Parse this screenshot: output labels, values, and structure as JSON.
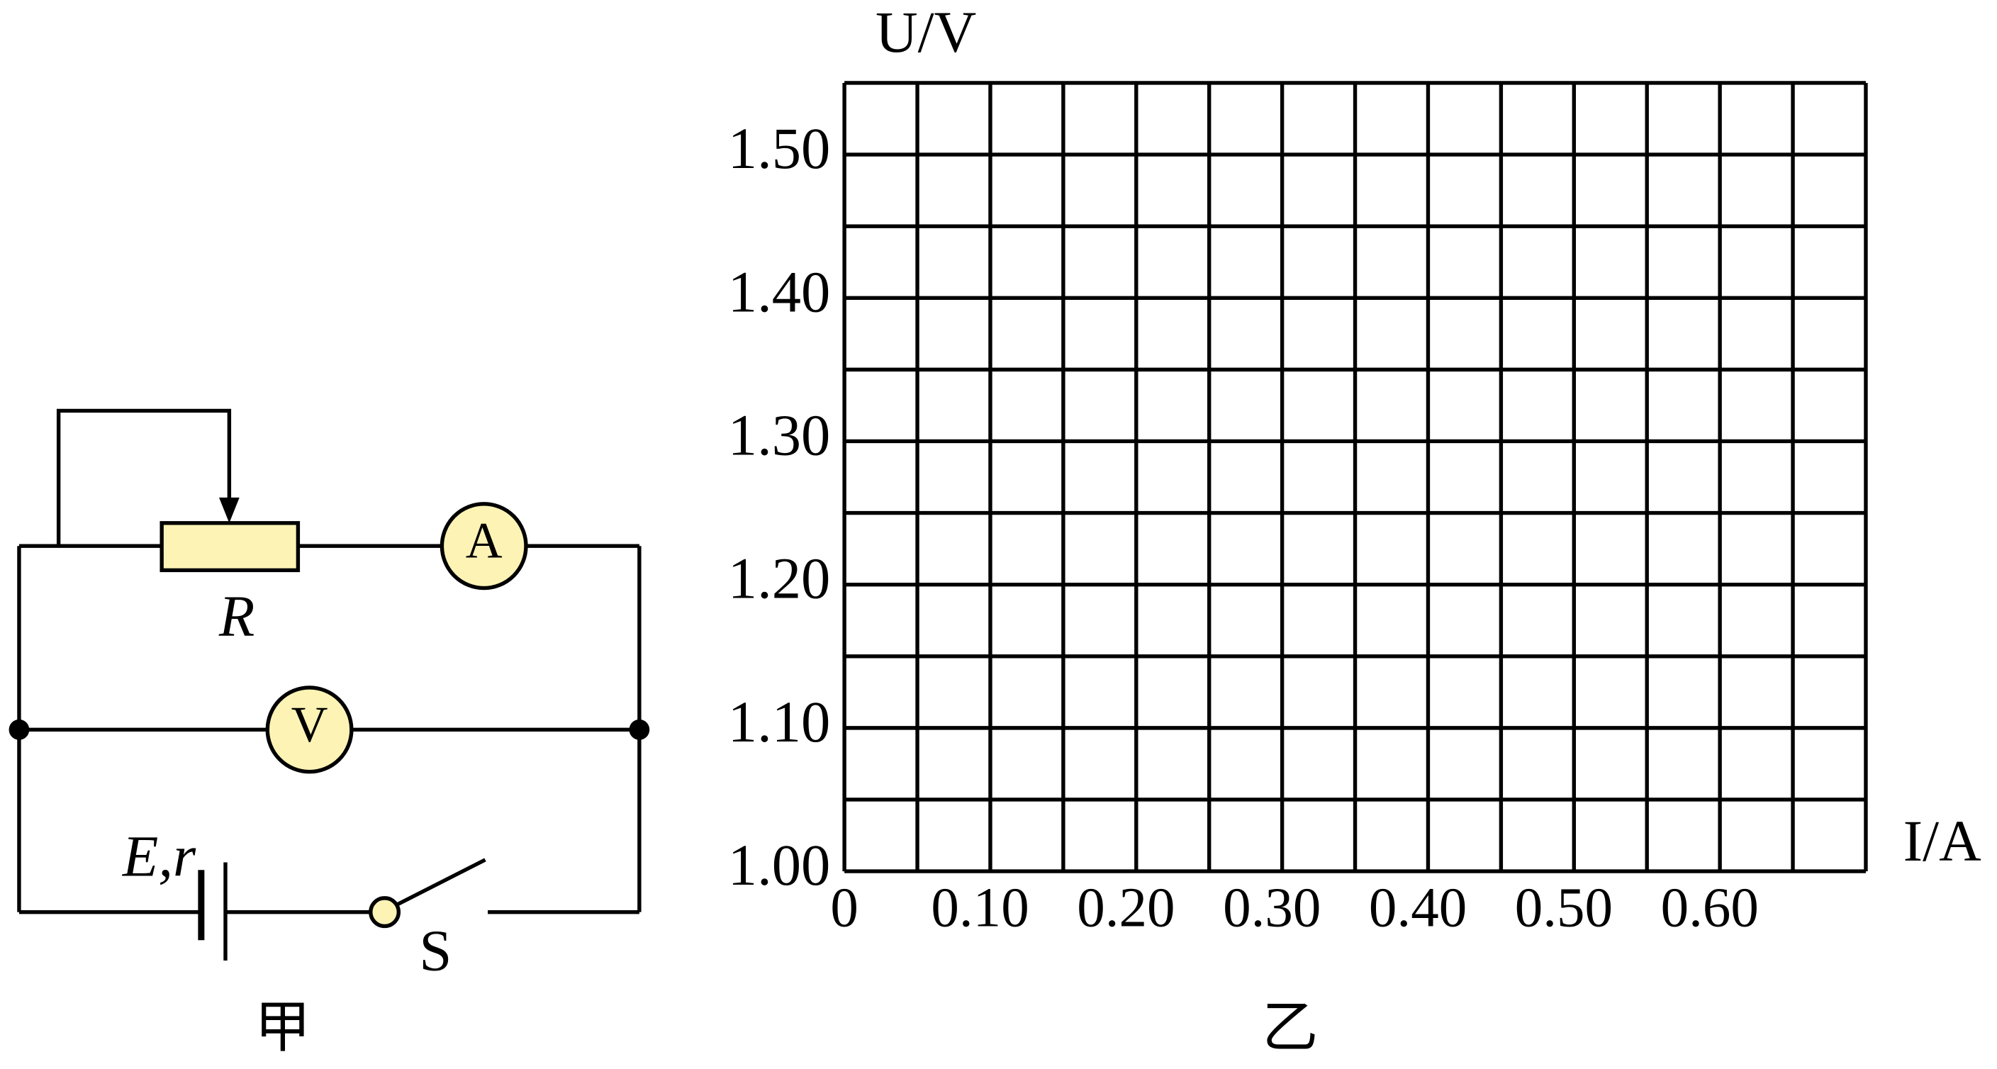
{
  "circuit": {
    "resistor_label": "R",
    "ammeter_label": "A",
    "voltmeter_label": "V",
    "source_label": "E,r",
    "switch_label": "S",
    "caption": "甲"
  },
  "chart_data": {
    "type": "grid",
    "x_label": "I/A",
    "y_label": "U/V",
    "caption": "乙",
    "xlim": [
      0,
      0.7
    ],
    "ylim": [
      1.0,
      1.55
    ],
    "xticks": [
      0,
      {
        "value": 0.1,
        "label": "0.10"
      },
      {
        "value": 0.2,
        "label": "0.20"
      },
      {
        "value": 0.3,
        "label": "0.30"
      },
      {
        "value": 0.4,
        "label": "0.40"
      },
      {
        "value": 0.5,
        "label": "0.50"
      },
      {
        "value": 0.6,
        "label": "0.60"
      }
    ],
    "yticks": [
      {
        "value": 1.0,
        "label": "1.00"
      },
      {
        "value": 1.1,
        "label": "1.10"
      },
      {
        "value": 1.2,
        "label": "1.20"
      },
      {
        "value": 1.3,
        "label": "1.30"
      },
      {
        "value": 1.4,
        "label": "1.40"
      },
      {
        "value": 1.5,
        "label": "1.50"
      }
    ],
    "grid": {
      "x_step": 0.05,
      "y_step": 0.05
    }
  }
}
